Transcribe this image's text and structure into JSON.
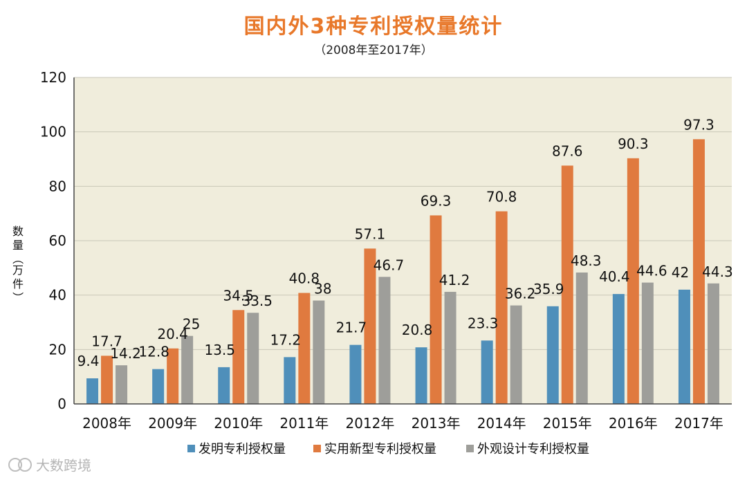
{
  "chart_data": {
    "type": "bar",
    "title": "国内外3种专利授权量统计",
    "subtitle": "（2008年至2017年）",
    "xlabel": "",
    "ylabel": "数量（万件）",
    "ylim": [
      0,
      120
    ],
    "yticks": [
      0,
      20,
      40,
      60,
      80,
      100,
      120
    ],
    "grid": true,
    "legend_position": "bottom",
    "categories": [
      "2008年",
      "2009年",
      "2010年",
      "2011年",
      "2012年",
      "2013年",
      "2014年",
      "2015年",
      "2016年",
      "2017年"
    ],
    "series": [
      {
        "name": "发明专利授权量",
        "color": "#4f8fba",
        "values": [
          9.4,
          12.8,
          13.5,
          17.2,
          21.7,
          20.8,
          23.3,
          35.9,
          40.4,
          42
        ],
        "labels": [
          "9.4",
          "12.8",
          "13.5",
          "17.2",
          "21.7",
          "20.8",
          "23.3",
          "35.9",
          "40.4",
          "42"
        ]
      },
      {
        "name": "实用新型专利授权量",
        "color": "#e07a3f",
        "values": [
          17.7,
          20.4,
          34.5,
          40.8,
          57.1,
          69.3,
          70.8,
          87.6,
          90.3,
          97.3
        ],
        "labels": [
          "17.7",
          "20.4",
          "34.5",
          "40.8",
          "57.1",
          "69.3",
          "70.8",
          "87.6",
          "90.3",
          "97.3"
        ]
      },
      {
        "name": "外观设计专利授权量",
        "color": "#9e9e9a",
        "values": [
          14.2,
          25,
          33.5,
          38,
          46.7,
          41.2,
          36.2,
          48.3,
          44.6,
          44.3
        ],
        "labels": [
          "14.2",
          "25",
          "33.5",
          "38",
          "46.7",
          "41.2",
          "36.2",
          "48.3",
          "44.6",
          "44.3"
        ]
      }
    ],
    "plot_background": "#f0eddc",
    "title_color": "#e8782a"
  },
  "watermark": {
    "text": "大数跨境"
  }
}
